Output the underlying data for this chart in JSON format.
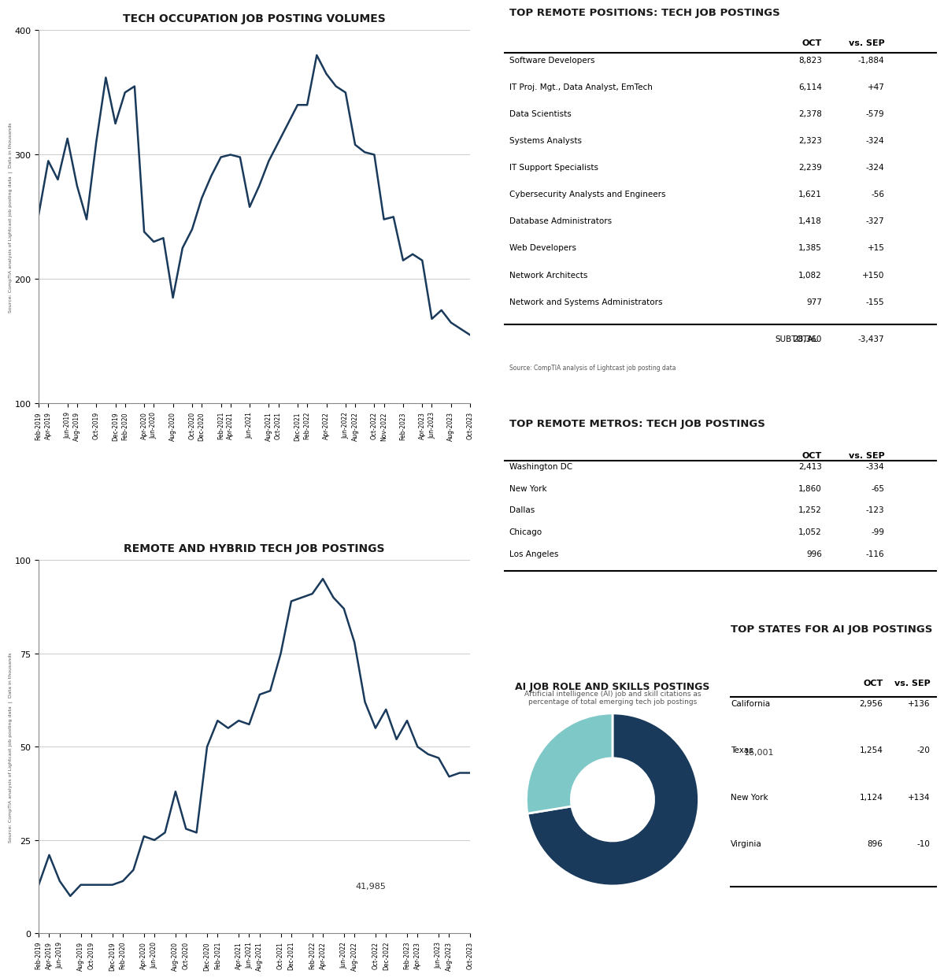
{
  "chart1_title": "TECH OCCUPATION JOB POSTING VOLUMES",
  "chart1_ylabel": "Source: CompTIA analysis of Lightcast job posting data  |  Data in thousands",
  "chart1_ylim": [
    100,
    400
  ],
  "chart1_yticks": [
    100,
    200,
    300,
    400
  ],
  "chart1_data": [
    252,
    295,
    280,
    313,
    275,
    248,
    310,
    362,
    325,
    350,
    355,
    238,
    230,
    233,
    185,
    225,
    240,
    265,
    283,
    298,
    300,
    298,
    258,
    275,
    295,
    310,
    325,
    340,
    340,
    380,
    365,
    355,
    350,
    308,
    302,
    300,
    248,
    250,
    215,
    220,
    215,
    168,
    175,
    165,
    160,
    155
  ],
  "chart1_labels": [
    "Feb-2019",
    "Apr-2019",
    "Jun-2019",
    "Aug-2019",
    "Oct-2019",
    "Dec-2019",
    "Feb-2020",
    "Apr-2020",
    "Jun-2020",
    "Aug-2020",
    "Oct-2020",
    "Dec-2020",
    "Feb-2021",
    "Apr-2021",
    "Jun-2021",
    "Aug-2021",
    "Oct-2021",
    "Dec-2021",
    "Feb-2022",
    "Apr-2022",
    "Jun-2022",
    "Aug-2022",
    "Oct-2022",
    "Nov-2022",
    "Feb-2023",
    "Apr-2023",
    "Jun-2023",
    "Aug-2023",
    "Oct-2023"
  ],
  "chart2_title": "REMOTE AND HYBRID TECH JOB POSTINGS",
  "chart2_ylabel": "Source: CompTIA analysis of Lightcast job posting data  |  Data in thousands",
  "chart2_ylim": [
    0,
    100
  ],
  "chart2_yticks": [
    0,
    25,
    50,
    75,
    100
  ],
  "chart2_data": [
    13,
    21,
    14,
    10,
    13,
    13,
    13,
    13,
    14,
    17,
    26,
    25,
    27,
    38,
    28,
    27,
    50,
    57,
    55,
    57,
    56,
    64,
    65,
    75,
    89,
    90,
    91,
    95,
    90,
    87,
    78,
    62,
    55,
    60,
    52,
    57,
    50,
    48,
    47,
    42,
    43,
    43
  ],
  "chart2_labels": [
    "Feb-2019",
    "Apr-2019",
    "Jun-2019",
    "Aug-2019",
    "Oct-2019",
    "Dec-2019",
    "Feb-2020",
    "Apr-2020",
    "Jun-2020",
    "Aug-2020",
    "Oct-2020",
    "Dec-2020",
    "Feb-2021",
    "Apr-2021",
    "Jun-2021",
    "Aug-2021",
    "Oct-2021",
    "Dec-2021",
    "Feb-2022",
    "Apr-2022",
    "Jun-2022",
    "Aug-2022",
    "Oct-2022",
    "Dec-2022",
    "Feb-2023",
    "Apr-2023",
    "Jun-2023",
    "Aug-2023",
    "Oct-2023"
  ],
  "table1_title": "TOP REMOTE POSITIONS: TECH JOB POSTINGS",
  "table1_rows": [
    [
      "Software Developers",
      "8,823",
      "-1,884"
    ],
    [
      "IT Proj. Mgt., Data Analyst, EmTech",
      "6,114",
      "+47"
    ],
    [
      "Data Scientists",
      "2,378",
      "-579"
    ],
    [
      "Systems Analysts",
      "2,323",
      "-324"
    ],
    [
      "IT Support Specialists",
      "2,239",
      "-324"
    ],
    [
      "Cybersecurity Analysts and Engineers",
      "1,621",
      "-56"
    ],
    [
      "Database Administrators",
      "1,418",
      "-327"
    ],
    [
      "Web Developers",
      "1,385",
      "+15"
    ],
    [
      "Network Architects",
      "1,082",
      "+150"
    ],
    [
      "Network and Systems Administrators",
      "977",
      "-155"
    ]
  ],
  "table1_subtotal": [
    "SUBTOTAL",
    "28,360",
    "-3,437"
  ],
  "table1_source": "Source: CompTIA analysis of Lightcast job posting data",
  "table2_title": "TOP REMOTE METROS: TECH JOB POSTINGS",
  "table2_rows": [
    [
      "Washington DC",
      "2,413",
      "-334"
    ],
    [
      "New York",
      "1,860",
      "-65"
    ],
    [
      "Dallas",
      "1,252",
      "-123"
    ],
    [
      "Chicago",
      "1,052",
      "-99"
    ],
    [
      "Los Angeles",
      "996",
      "-116"
    ]
  ],
  "pie_title": "AI JOB ROLE AND SKILLS POSTINGS",
  "pie_subtitle": "Artificial intelligence (AI) job and skill citations as\npercentage of total emerging tech job postings",
  "pie_values": [
    41985,
    16001
  ],
  "pie_labels": [
    "41,985",
    "16,001"
  ],
  "pie_colors": [
    "#1a3a5c",
    "#7ec8c8"
  ],
  "table3_title": "TOP STATES FOR AI JOB POSTINGS",
  "table3_rows": [
    [
      "California",
      "2,956",
      "+136"
    ],
    [
      "Texas",
      "1,254",
      "-20"
    ],
    [
      "New York",
      "1,124",
      "+134"
    ],
    [
      "Virginia",
      "896",
      "-10"
    ]
  ],
  "line_color": "#1a3a5c",
  "bg_color": "#ffffff",
  "grid_color": "#cccccc",
  "text_color": "#1a1a1a"
}
